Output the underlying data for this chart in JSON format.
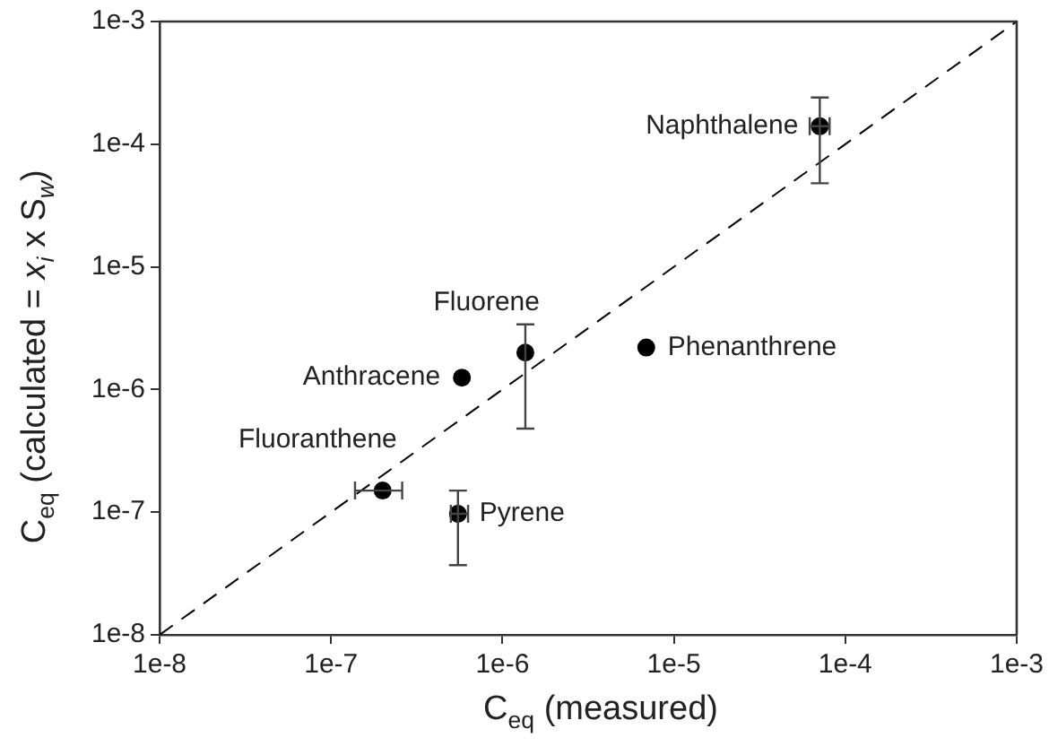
{
  "chart_data": {
    "type": "scatter",
    "xlabel": "C$_{eq}$ (measured)",
    "ylabel": "C$_{eq}$ (calculated = x$_{i}$ x S$_{w}$)",
    "log": "xy",
    "grid": false,
    "legend": false,
    "marker": "circle",
    "xlim": [
      1e-08,
      0.001
    ],
    "ylim": [
      1e-08,
      0.001
    ],
    "xticks": [
      {
        "value": 1e-08,
        "label": "1e-8"
      },
      {
        "value": 1e-07,
        "label": "1e-7"
      },
      {
        "value": 1e-06,
        "label": "1e-6"
      },
      {
        "value": 1e-05,
        "label": "1e-5"
      },
      {
        "value": 0.0001,
        "label": "1e-4"
      },
      {
        "value": 0.001,
        "label": "1e-3"
      }
    ],
    "yticks": [
      {
        "value": 1e-08,
        "label": "1e-8"
      },
      {
        "value": 1e-07,
        "label": "1e-7"
      },
      {
        "value": 1e-06,
        "label": "1e-6"
      },
      {
        "value": 1e-05,
        "label": "1e-5"
      },
      {
        "value": 0.0001,
        "label": "1e-4"
      },
      {
        "value": 0.001,
        "label": "1e-3"
      }
    ],
    "series": [
      {
        "type": "line",
        "color": "#000000",
        "line_style": "dashed",
        "marker": "none",
        "x": [
          1e-08,
          0.001
        ],
        "values": [
          1e-08,
          0.001
        ]
      },
      {
        "name": "Naphthalene",
        "color": "#000000",
        "x": [
          7.1e-05
        ],
        "values": [
          0.00014
        ],
        "errors": [
          [
            4.8e-05,
            0.00024
          ]
        ],
        "xerrors": [
          [
            6.2e-05,
            8.1e-05
          ]
        ]
      },
      {
        "name": "Fluorene",
        "color": "#000000",
        "x": [
          1.36e-06
        ],
        "values": [
          2e-06
        ],
        "errors": [
          [
            4.8e-07,
            3.4e-06
          ]
        ]
      },
      {
        "name": "Anthracene",
        "color": "#000000",
        "x": [
          5.8e-07
        ],
        "values": [
          1.25e-06
        ]
      },
      {
        "name": "Phenanthrene",
        "color": "#000000",
        "x": [
          6.9e-06
        ],
        "values": [
          2.2e-06
        ]
      },
      {
        "name": "Fluoranthene",
        "color": "#000000",
        "x": [
          2e-07
        ],
        "values": [
          1.5e-07
        ],
        "xerrors": [
          [
            1.38e-07,
            2.6e-07
          ]
        ]
      },
      {
        "name": "Pyrene",
        "color": "#000000",
        "x": [
          5.5e-07
        ],
        "values": [
          9.7e-08
        ],
        "errors": [
          [
            3.7e-08,
            1.5e-07
          ]
        ],
        "xerrors": [
          [
            5e-07,
            6.3e-07
          ]
        ]
      }
    ]
  }
}
